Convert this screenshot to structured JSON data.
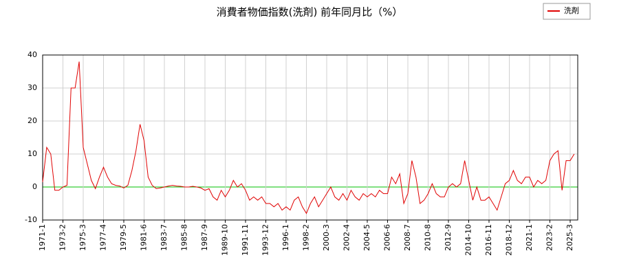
{
  "chart_data": {
    "type": "line",
    "title": "消費者物価指数(洗剤) 前年同月比（%）",
    "categories": [
      "1971-1",
      null,
      null,
      null,
      null,
      "1973-2",
      null,
      null,
      null,
      null,
      "1975-3",
      null,
      null,
      null,
      null,
      "1977-4",
      null,
      null,
      null,
      null,
      "1979-5",
      null,
      null,
      null,
      null,
      "1981-6",
      null,
      null,
      null,
      null,
      "1983-7",
      null,
      null,
      null,
      null,
      "1985-8",
      null,
      null,
      null,
      null,
      "1987-9",
      null,
      null,
      null,
      null,
      "1989-10",
      null,
      null,
      null,
      null,
      "1991-11",
      null,
      null,
      null,
      null,
      "1993-12",
      null,
      null,
      null,
      null,
      "1996-1",
      null,
      null,
      null,
      null,
      "1998-2",
      null,
      null,
      null,
      null,
      "2000-3",
      null,
      null,
      null,
      null,
      "2002-4",
      null,
      null,
      null,
      null,
      "2004-5",
      null,
      null,
      null,
      null,
      "2006-6",
      null,
      null,
      null,
      null,
      "2008-7",
      null,
      null,
      null,
      null,
      "2010-8",
      null,
      null,
      null,
      null,
      "2012-9",
      null,
      null,
      null,
      null,
      "2014-10",
      null,
      null,
      null,
      null,
      "2016-11",
      null,
      null,
      null,
      null,
      "2018-12",
      null,
      null,
      null,
      null,
      "2021-1",
      null,
      null,
      null,
      null,
      "2023-2",
      null,
      null,
      null,
      null,
      "2025-3",
      null
    ],
    "series": [
      {
        "name": "洗剤",
        "color": "#e00000",
        "values": [
          1.5,
          12,
          10,
          -1,
          -1,
          0,
          0.5,
          30,
          30,
          38,
          12,
          7,
          2,
          -0.5,
          3,
          6,
          3,
          1,
          0.5,
          0.3,
          -0.3,
          0.5,
          5,
          11,
          19,
          14,
          3,
          0.5,
          -0.5,
          -0.3,
          0,
          0.3,
          0.5,
          0.3,
          0.2,
          0,
          0,
          0.2,
          0,
          -0.3,
          -1,
          -0.5,
          -3,
          -4,
          -1,
          -3,
          -1,
          2,
          0,
          1,
          -1,
          -4,
          -3,
          -4,
          -3,
          -5,
          -5,
          -6,
          -5,
          -7,
          -6,
          -7,
          -4,
          -3,
          -6,
          -8,
          -5,
          -3,
          -6,
          -4,
          -2,
          0,
          -3,
          -4,
          -2,
          -4,
          -1,
          -3,
          -4,
          -2,
          -3,
          -2,
          -3,
          -1,
          -2,
          -2,
          3,
          1,
          4,
          -5,
          -2,
          8,
          3,
          -5,
          -4,
          -2,
          1,
          -2,
          -3,
          -3,
          0,
          1,
          0,
          1,
          8,
          2,
          -4,
          0,
          -4,
          -4,
          -3,
          -5,
          -7,
          -3,
          1,
          2,
          5,
          2,
          1,
          3,
          3,
          0,
          2,
          1,
          2,
          8,
          10,
          11,
          -1,
          8,
          8,
          10
        ]
      }
    ],
    "ylim": [
      -10,
      40
    ],
    "yticks": [
      -10,
      0,
      10,
      20,
      30,
      40
    ],
    "grid": true,
    "zero_line_color": "#00c000",
    "legend": "top-right"
  }
}
